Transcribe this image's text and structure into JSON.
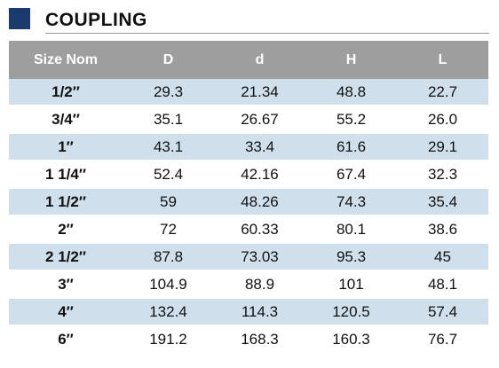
{
  "title": "COUPLING",
  "columns": [
    "Size Nom",
    "D",
    "d",
    "H",
    "L"
  ],
  "rows": [
    {
      "size": "1/2″",
      "D": "29.3",
      "d": "21.34",
      "H": "48.8",
      "L": "22.7"
    },
    {
      "size": "3/4″",
      "D": "35.1",
      "d": "26.67",
      "H": "55.2",
      "L": "26.0"
    },
    {
      "size": "1″",
      "D": "43.1",
      "d": "33.4",
      "H": "61.6",
      "L": "29.1"
    },
    {
      "size": "1 1/4″",
      "D": "52.4",
      "d": "42.16",
      "H": "67.4",
      "L": "32.3"
    },
    {
      "size": "1 1/2″",
      "D": "59",
      "d": "48.26",
      "H": "74.3",
      "L": "35.4"
    },
    {
      "size": "2″",
      "D": "72",
      "d": "60.33",
      "H": "80.1",
      "L": "38.6"
    },
    {
      "size": "2 1/2″",
      "D": "87.8",
      "d": "73.03",
      "H": "95.3",
      "L": "45"
    },
    {
      "size": "3″",
      "D": "104.9",
      "d": "88.9",
      "H": "101",
      "L": "48.1"
    },
    {
      "size": "4″",
      "D": "132.4",
      "d": "114.3",
      "H": "120.5",
      "L": "57.4"
    },
    {
      "size": "6″",
      "D": "191.2",
      "d": "168.3",
      "H": "160.3",
      "L": "76.7"
    }
  ],
  "colors": {
    "accent_square": "#1b3a6d",
    "header_bg": "#9e9e9e",
    "stripe": "#cfe0ec"
  }
}
